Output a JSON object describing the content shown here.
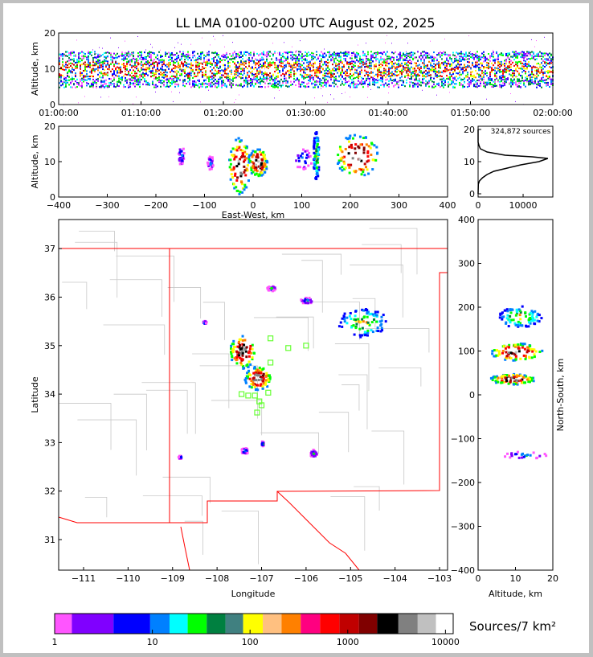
{
  "title": "LL LMA 0100-0200 UTC August 02, 2025",
  "chart_data": [
    {
      "id": "time_height",
      "type": "heatmap",
      "ylabel": "Altitude, km",
      "ylim": [
        0,
        20
      ],
      "yticks": [
        "0",
        "10",
        "20"
      ],
      "xlim_minutes": [
        0,
        60
      ],
      "xticks": [
        "01:00:00",
        "01:10:00",
        "01:20:00",
        "01:30:00",
        "01:40:00",
        "01:50:00",
        "02:00:00"
      ],
      "band_km": [
        5,
        15
      ],
      "core_km": [
        8,
        12
      ]
    },
    {
      "id": "east_west",
      "type": "heatmap",
      "xlabel": "East-West, km",
      "ylabel": "Altitude, km",
      "xlim": [
        -400,
        400
      ],
      "ylim": [
        0,
        20
      ],
      "xticks": [
        "−400",
        "−300",
        "−200",
        "−100",
        "0",
        "100",
        "200",
        "300",
        "400"
      ],
      "yticks": [
        "0",
        "10",
        "20"
      ],
      "clusters": [
        {
          "x": -30,
          "y": 9,
          "rx": 22,
          "ry": 8,
          "level": "high"
        },
        {
          "x": 8,
          "y": 10,
          "rx": 20,
          "ry": 4,
          "level": "high"
        },
        {
          "x": 128,
          "y": 12,
          "rx": 6,
          "ry": 7,
          "level": "mid"
        },
        {
          "x": 212,
          "y": 12,
          "rx": 45,
          "ry": 6,
          "level": "high"
        },
        {
          "x": 100,
          "y": 11,
          "rx": 20,
          "ry": 3,
          "level": "low"
        },
        {
          "x": -150,
          "y": 12,
          "rx": 6,
          "ry": 3,
          "level": "low"
        },
        {
          "x": -90,
          "y": 10,
          "rx": 6,
          "ry": 2,
          "level": "low"
        }
      ]
    },
    {
      "id": "altitude_histogram",
      "type": "line",
      "annotation": "324,872 sources",
      "xlim": [
        0,
        16600
      ],
      "ylim": [
        0,
        20
      ],
      "xticks": [
        "0",
        "10000"
      ],
      "yticks": [
        "0",
        "10",
        "20"
      ],
      "x": [
        0,
        50,
        300,
        1000,
        2000,
        3500,
        6500,
        9500,
        13500,
        15500,
        12000,
        6000,
        2000,
        500,
        200,
        0,
        0
      ],
      "y": [
        0,
        3,
        4,
        5,
        6,
        7,
        8,
        9,
        10,
        11,
        11.5,
        12,
        13,
        14,
        15,
        16,
        20
      ]
    },
    {
      "id": "plan_view",
      "type": "heatmap",
      "xlabel": "Longitude",
      "ylabel": "Latitude",
      "xlim": [
        -111.56,
        -102.82
      ],
      "ylim": [
        30.37,
        37.6
      ],
      "xticks": [
        "−111",
        "−110",
        "−109",
        "−108",
        "−107",
        "−106",
        "−105",
        "−104",
        "−103"
      ],
      "yticks": [
        "31",
        "32",
        "33",
        "34",
        "35",
        "36",
        "37"
      ],
      "clusters": [
        {
          "x": -107.45,
          "y": 34.9,
          "rx": 0.3,
          "ry": 0.35,
          "level": "high"
        },
        {
          "x": -107.1,
          "y": 34.35,
          "rx": 0.3,
          "ry": 0.25,
          "level": "high"
        },
        {
          "x": -104.75,
          "y": 35.5,
          "rx": 0.55,
          "ry": 0.3,
          "level": "mid"
        },
        {
          "x": -106.8,
          "y": 36.2,
          "rx": 0.1,
          "ry": 0.05,
          "level": "low"
        },
        {
          "x": -106.0,
          "y": 35.95,
          "rx": 0.15,
          "ry": 0.06,
          "level": "low"
        },
        {
          "x": -107.4,
          "y": 32.85,
          "rx": 0.08,
          "ry": 0.06,
          "level": "low"
        },
        {
          "x": -107.0,
          "y": 33.0,
          "rx": 0.03,
          "ry": 0.05,
          "level": "low"
        },
        {
          "x": -105.85,
          "y": 32.8,
          "rx": 0.08,
          "ry": 0.08,
          "level": "low"
        },
        {
          "x": -108.3,
          "y": 35.5,
          "rx": 0.04,
          "ry": 0.03,
          "level": "low"
        },
        {
          "x": -108.85,
          "y": 32.72,
          "rx": 0.04,
          "ry": 0.03,
          "level": "low"
        }
      ],
      "stations": [
        [
          -106.8,
          35.15
        ],
        [
          -106.4,
          34.95
        ],
        [
          -106.0,
          35.0
        ],
        [
          -106.8,
          34.65
        ],
        [
          -107.45,
          34.0
        ],
        [
          -107.3,
          33.97
        ],
        [
          -107.15,
          33.97
        ],
        [
          -107.05,
          33.85
        ],
        [
          -106.85,
          34.03
        ],
        [
          -107.1,
          33.62
        ],
        [
          -107.0,
          33.77
        ]
      ]
    },
    {
      "id": "north_south",
      "type": "heatmap",
      "xlabel": "Altitude, km",
      "ylabel": "North-South, km",
      "xlim": [
        0,
        20
      ],
      "ylim": [
        -400,
        400
      ],
      "xticks": [
        "0",
        "10",
        "20"
      ],
      "yticks": [
        "−400",
        "−300",
        "−200",
        "−100",
        "0",
        "100",
        "200",
        "300",
        "400"
      ],
      "clusters": [
        {
          "x": 10,
          "y": 100,
          "rx": 7,
          "ry": 20,
          "level": "high"
        },
        {
          "x": 9,
          "y": 38,
          "rx": 6,
          "ry": 12,
          "level": "high"
        },
        {
          "x": 11,
          "y": 180,
          "rx": 6,
          "ry": 25,
          "level": "mid"
        },
        {
          "x": 12,
          "y": -135,
          "rx": 6,
          "ry": 8,
          "level": "low"
        }
      ]
    },
    {
      "id": "colorbar",
      "type": "colorbar",
      "label": "Sources/7 km²",
      "scale": "log",
      "range": [
        1,
        12000
      ],
      "ticks": [
        "1",
        "10",
        "100",
        "1000",
        "10000"
      ],
      "edges": [
        1,
        1.5,
        4,
        9.5,
        15,
        23,
        36,
        56,
        85,
        135,
        210,
        330,
        520,
        820,
        1300,
        2000,
        3300,
        5200,
        8000,
        12000
      ],
      "colors": [
        "#ff55ff",
        "#8000ff",
        "#0000ff",
        "#0080ff",
        "#00ffff",
        "#00ff00",
        "#008040",
        "#408080",
        "#ffff00",
        "#ffc080",
        "#ff8000",
        "#ff0080",
        "#ff0000",
        "#c00000",
        "#800000",
        "#000000",
        "#808080",
        "#c0c0c0",
        "#ffffff"
      ]
    }
  ]
}
